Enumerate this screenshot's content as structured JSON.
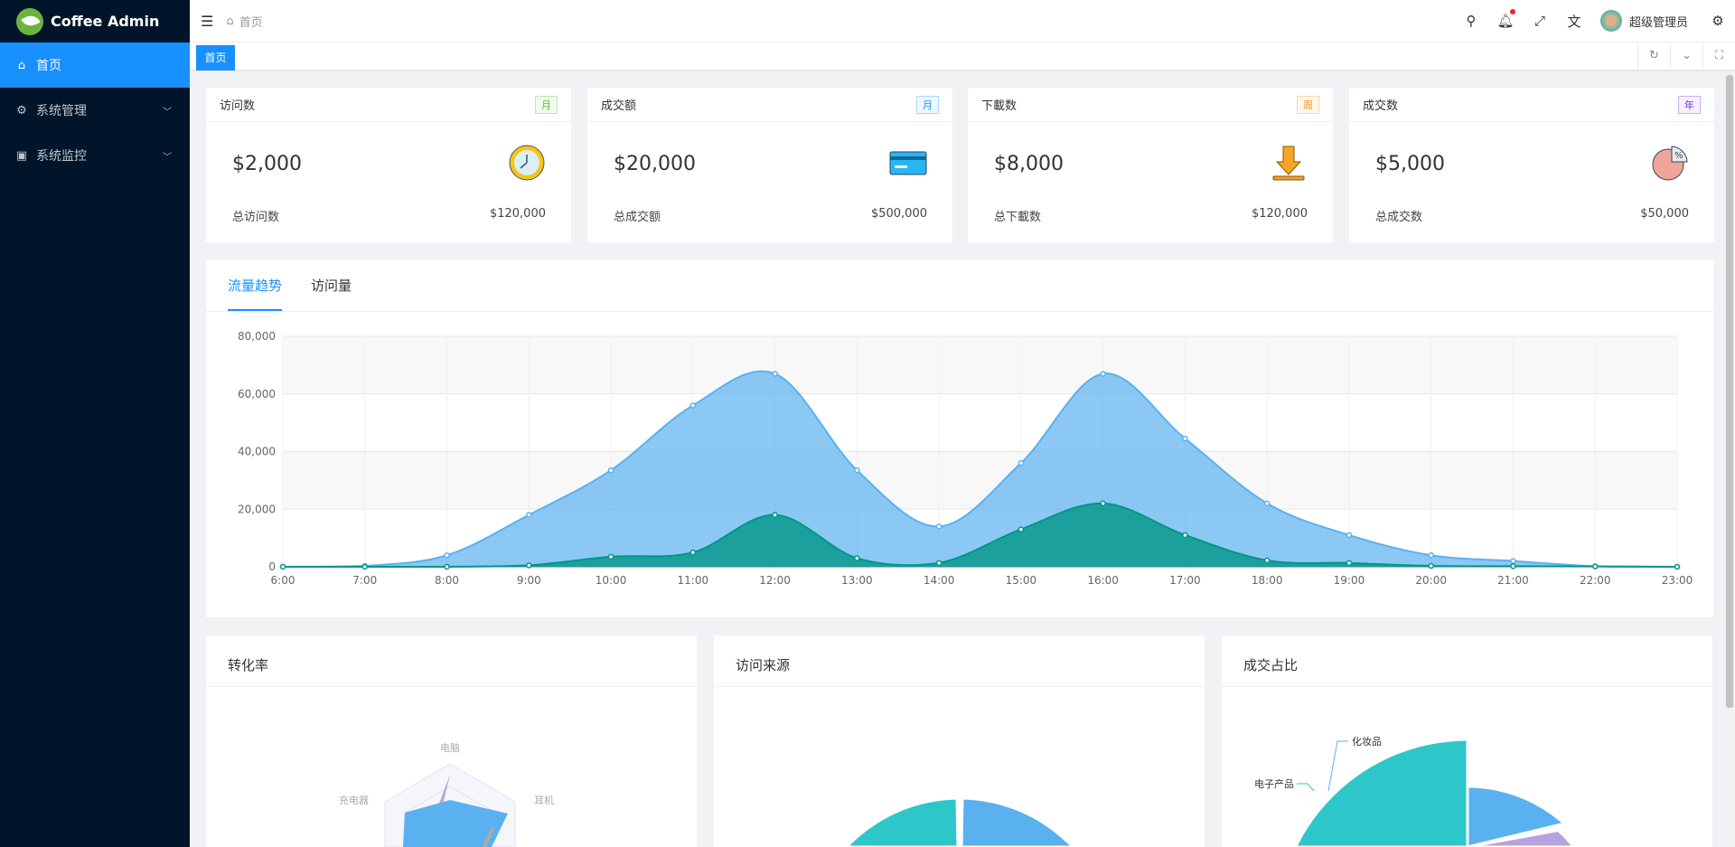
{
  "app": {
    "title": "Coffee Admin"
  },
  "sidebar": {
    "items": [
      {
        "label": "首页",
        "icon": "home-icon",
        "active": true
      },
      {
        "label": "系统管理",
        "icon": "gear-icon"
      },
      {
        "label": "系统监控",
        "icon": "monitor-icon"
      }
    ]
  },
  "header": {
    "breadcrumb": "首页",
    "user": "超级管理员",
    "notification_dot": true
  },
  "tabs": [
    {
      "label": "首页",
      "active": true
    }
  ],
  "cards": [
    {
      "title": "访问数",
      "badge": "月",
      "badge_color": "#52c41a",
      "value": "$2,000",
      "footer_label": "总访问数",
      "footer_value": "$120,000",
      "icon": "clock-icon"
    },
    {
      "title": "成交额",
      "badge": "月",
      "badge_color": "#1890ff",
      "value": "$20,000",
      "footer_label": "总成交额",
      "footer_value": "$500,000",
      "icon": "credit-card-icon"
    },
    {
      "title": "下載数",
      "badge": "周",
      "badge_color": "#fa8c16",
      "value": "$8,000",
      "footer_label": "总下載数",
      "footer_value": "$120,000",
      "icon": "download-icon"
    },
    {
      "title": "成交数",
      "badge": "年",
      "badge_color": "#722ed1",
      "value": "$5,000",
      "footer_label": "总成交数",
      "footer_value": "$50,000",
      "icon": "pie-chart-icon"
    }
  ],
  "chart_tabs": [
    {
      "label": "流量趋势",
      "active": true
    },
    {
      "label": "访问量"
    }
  ],
  "chart_data": {
    "type": "area",
    "x": [
      "6:00",
      "7:00",
      "8:00",
      "9:00",
      "10:00",
      "11:00",
      "12:00",
      "13:00",
      "14:00",
      "15:00",
      "16:00",
      "17:00",
      "18:00",
      "19:00",
      "20:00",
      "21:00",
      "22:00",
      "23:00"
    ],
    "ylim": [
      0,
      80000
    ],
    "yticks": [
      "0",
      "20,000",
      "40,000",
      "60,000",
      "80,000"
    ],
    "grid": true,
    "series": [
      {
        "values": [
          0,
          300,
          4000,
          18000,
          33500,
          56000,
          67000,
          33500,
          14000,
          36000,
          67000,
          44500,
          22000,
          11000,
          4000,
          2000,
          200,
          0
        ],
        "color": "#5ab1ef"
      },
      {
        "values": [
          0,
          0,
          0,
          500,
          3500,
          5000,
          18000,
          3000,
          1300,
          13000,
          22000,
          11000,
          2200,
          1300,
          300,
          200,
          100,
          0
        ],
        "color": "#009688"
      }
    ]
  },
  "panels": [
    {
      "title": "转化率",
      "labels": [
        "电脑",
        "耳机",
        "充电器"
      ]
    },
    {
      "title": "访问来源"
    },
    {
      "title": "成交占比",
      "labels": [
        "电子产品",
        "化妆品"
      ]
    }
  ]
}
